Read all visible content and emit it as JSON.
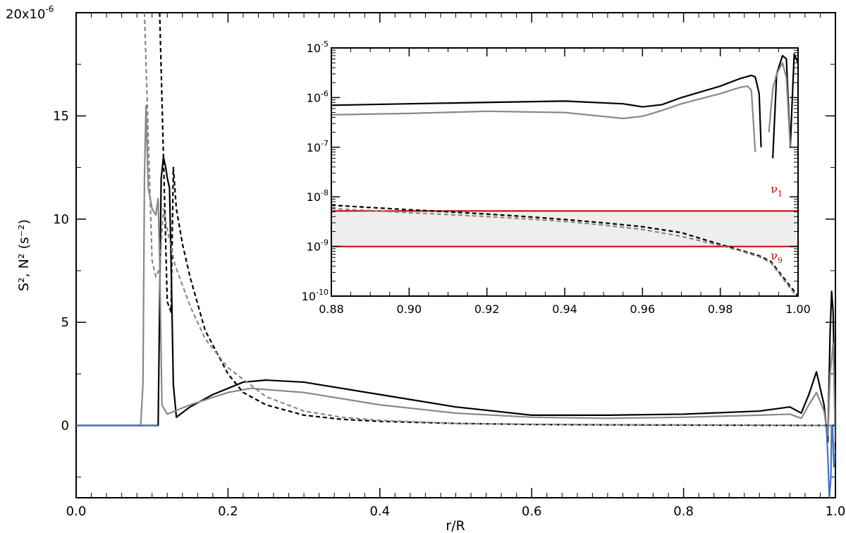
{
  "chart_data": [
    {
      "type": "line",
      "role": "main",
      "xlabel": "r/R",
      "ylabel": "S², N² (s⁻²)",
      "xlim": [
        0.0,
        1.0
      ],
      "ylim": [
        -3.5e-06,
        2e-05
      ],
      "x_ticks": [
        {
          "v": 0.0,
          "label": "0.0"
        },
        {
          "v": 0.2,
          "label": "0.2"
        },
        {
          "v": 0.4,
          "label": "0.4"
        },
        {
          "v": 0.6,
          "label": "0.6"
        },
        {
          "v": 0.8,
          "label": "0.8"
        },
        {
          "v": 1.0,
          "label": "1.0"
        }
      ],
      "y_ticks": [
        {
          "v": 0,
          "label": "0"
        },
        {
          "v": 5e-06,
          "label": "5"
        },
        {
          "v": 1e-05,
          "label": "10"
        },
        {
          "v": 1.5e-05,
          "label": "15"
        }
      ],
      "y_top_label": "20x10",
      "y_top_exponent": "-6",
      "series": [
        {
          "key": "n2_black",
          "color": "#000000",
          "style": "solid",
          "x": [
            0.0,
            0.108,
            0.112,
            0.115,
            0.118,
            0.12,
            0.123,
            0.125,
            0.128,
            0.132,
            0.15,
            0.18,
            0.22,
            0.25,
            0.3,
            0.4,
            0.5,
            0.6,
            0.7,
            0.8,
            0.9,
            0.94,
            0.955,
            0.965,
            0.975,
            0.985,
            0.99,
            0.993,
            0.995,
            0.997,
            1.0
          ],
          "y": [
            0,
            0,
            1.2e-05,
            1.3e-05,
            1.25e-05,
            1.2e-05,
            1.15e-05,
            8e-06,
            2e-06,
            4e-07,
            9e-07,
            1.5e-06,
            2.1e-06,
            2.2e-06,
            2.1e-06,
            1.5e-06,
            9e-07,
            5e-07,
            5e-07,
            5.5e-07,
            7e-07,
            9e-07,
            6e-07,
            1.5e-06,
            2.6e-06,
            1e-06,
            -8e-07,
            4.5e-06,
            6.5e-06,
            5.5e-06,
            -1.2e-06
          ]
        },
        {
          "key": "n2_gray",
          "color": "#888888",
          "style": "solid",
          "x": [
            0.0,
            0.085,
            0.088,
            0.09,
            0.092,
            0.095,
            0.1,
            0.105,
            0.108,
            0.11,
            0.113,
            0.12,
            0.15,
            0.2,
            0.23,
            0.3,
            0.4,
            0.5,
            0.6,
            0.7,
            0.8,
            0.9,
            0.94,
            0.955,
            0.965,
            0.975,
            0.985,
            0.99,
            0.993,
            0.997,
            1.0
          ],
          "y": [
            0,
            0,
            2e-06,
            1.2e-05,
            1.55e-05,
            1.15e-05,
            1.05e-05,
            1.02e-05,
            1.1e-05,
            8e-06,
            1e-06,
            5.5e-07,
            1e-06,
            1.6e-06,
            1.8e-06,
            1.6e-06,
            1e-06,
            6e-07,
            4e-07,
            3.5e-07,
            4e-07,
            5e-07,
            5.5e-07,
            3.5e-07,
            1e-06,
            1.6e-06,
            7e-07,
            -5e-07,
            2.5e-06,
            4e-06,
            -8e-07
          ]
        },
        {
          "key": "s2_black",
          "color": "#000000",
          "style": "dashed",
          "x": [
            0.11,
            0.115,
            0.12,
            0.125,
            0.128,
            0.132,
            0.14,
            0.15,
            0.17,
            0.2,
            0.22,
            0.25,
            0.3,
            0.35,
            0.4,
            0.5,
            0.6,
            0.7,
            0.8,
            0.9,
            1.0
          ],
          "y": [
            2e-05,
            1.3e-05,
            6e-06,
            5.5e-06,
            1.25e-05,
            1.05e-05,
            8.8e-06,
            7.2e-06,
            4.6e-06,
            2.5e-06,
            1.6e-06,
            1e-06,
            5e-07,
            3e-07,
            2e-07,
            1e-07,
            5e-08,
            3e-08,
            2e-08,
            1e-08,
            0.0
          ]
        },
        {
          "key": "s2_gray",
          "color": "#888888",
          "style": "dashed",
          "x": [
            0.09,
            0.095,
            0.1,
            0.105,
            0.11,
            0.115,
            0.12,
            0.13,
            0.15,
            0.17,
            0.2,
            0.25,
            0.3,
            0.35,
            0.4,
            0.5,
            0.6,
            0.7,
            0.8,
            0.9,
            1.0
          ],
          "y": [
            2e-05,
            1.4e-05,
            8e-06,
            7.2e-06,
            7.6e-06,
            1.05e-05,
            9.5e-06,
            7.8e-06,
            5.8e-06,
            4.2e-06,
            2.8e-06,
            1.4e-06,
            7e-07,
            4e-07,
            2.5e-07,
            1e-07,
            6e-08,
            4e-08,
            3e-08,
            2e-08,
            0.0
          ]
        },
        {
          "key": "negative_blue",
          "color": "#4472c4",
          "style": "solid",
          "x": [
            0.0,
            0.108,
            null,
            0.988,
            0.99,
            0.992,
            0.994,
            0.995,
            null,
            0.996,
            0.998,
            1.0
          ],
          "y": [
            0,
            0,
            null,
            0,
            -1.5e-06,
            -3.5e-06,
            -2.5e-06,
            0,
            null,
            0,
            -2e-06,
            -1.2e-06
          ]
        }
      ]
    },
    {
      "type": "line",
      "role": "inset",
      "yscale": "log",
      "xlim": [
        0.88,
        1.0
      ],
      "ylim": [
        1e-10,
        1e-05
      ],
      "x_ticks": [
        {
          "v": 0.88,
          "label": "0.88"
        },
        {
          "v": 0.9,
          "label": "0.90"
        },
        {
          "v": 0.92,
          "label": "0.92"
        },
        {
          "v": 0.94,
          "label": "0.94"
        },
        {
          "v": 0.96,
          "label": "0.96"
        },
        {
          "v": 0.98,
          "label": "0.98"
        },
        {
          "v": 1.0,
          "label": "1.00"
        }
      ],
      "y_ticks": [
        {
          "v": 1e-10,
          "base": "10",
          "exp": "-10"
        },
        {
          "v": 1e-09,
          "base": "10",
          "exp": "-9"
        },
        {
          "v": 1e-08,
          "base": "10",
          "exp": "-8"
        },
        {
          "v": 1e-07,
          "base": "10",
          "exp": "-7"
        },
        {
          "v": 1e-06,
          "base": "10",
          "exp": "-6"
        },
        {
          "v": 1e-05,
          "base": "10",
          "exp": "-5"
        }
      ],
      "band": {
        "low": 1e-09,
        "high": 5.2e-09,
        "fill": "#eeeeee",
        "line_color": "#cc0000"
      },
      "annotations": [
        {
          "sym": "ν",
          "sub": "1",
          "x": 0.9945,
          "y": 1.2e-08
        },
        {
          "sym": "ν",
          "sub": "9",
          "x": 0.9945,
          "y": 5.5e-10
        }
      ],
      "series": [
        {
          "key": "inset_n2_black",
          "color": "#000000",
          "style": "solid",
          "x": [
            0.88,
            0.9,
            0.92,
            0.94,
            0.955,
            0.96,
            0.965,
            0.97,
            0.98,
            0.985,
            0.988,
            0.989,
            0.99,
            0.9905,
            null,
            0.9935,
            0.9945,
            0.996,
            0.997,
            0.998,
            0.999,
            1.0
          ],
          "y": [
            7e-07,
            7.5e-07,
            8e-07,
            8.5e-07,
            7.5e-07,
            6.5e-07,
            7.2e-07,
            1e-06,
            1.7e-06,
            2.4e-06,
            2.8e-06,
            2.6e-06,
            1.2e-06,
            1e-07,
            null,
            6e-08,
            3e-06,
            7e-06,
            6e-06,
            1e-07,
            7.5e-06,
            5e-06
          ]
        },
        {
          "key": "inset_n2_gray",
          "color": "#888888",
          "style": "solid",
          "x": [
            0.88,
            0.9,
            0.92,
            0.94,
            0.955,
            0.96,
            0.965,
            0.97,
            0.98,
            0.985,
            0.987,
            0.988,
            0.989,
            null,
            0.9925,
            0.9935,
            0.9945,
            0.996,
            0.997,
            0.998
          ],
          "y": [
            4.5e-07,
            4.8e-07,
            5.3e-07,
            5e-07,
            3.8e-07,
            4.2e-07,
            5.5e-07,
            7.5e-07,
            1.2e-06,
            1.6e-06,
            1.7e-06,
            1.4e-06,
            8e-08,
            null,
            2e-07,
            1.5e-06,
            3e-06,
            5e-06,
            2.5e-06,
            1e-07
          ]
        },
        {
          "key": "inset_s2_black",
          "color": "#000000",
          "style": "dashed",
          "x": [
            0.88,
            0.89,
            0.9,
            0.91,
            0.92,
            0.93,
            0.94,
            0.95,
            0.96,
            0.97,
            0.98,
            0.985,
            0.99,
            0.993,
            0.996,
            1.0
          ],
          "y": [
            6.8e-09,
            6.1e-09,
            5.5e-09,
            5e-09,
            4.5e-09,
            4e-09,
            3.5e-09,
            3e-09,
            2.5e-09,
            1.9e-09,
            1.1e-09,
            8.5e-10,
            6.5e-10,
            5e-10,
            2.5e-10,
            1e-10
          ]
        },
        {
          "key": "inset_s2_gray",
          "color": "#888888",
          "style": "dashed",
          "x": [
            0.88,
            0.89,
            0.9,
            0.91,
            0.92,
            0.93,
            0.94,
            0.95,
            0.96,
            0.97,
            0.98,
            0.985,
            0.99,
            0.993,
            0.996,
            1.0
          ],
          "y": [
            5.8e-09,
            5.3e-09,
            4.8e-09,
            4.4e-09,
            4e-09,
            3.6e-09,
            3.2e-09,
            2.7e-09,
            2.2e-09,
            1.6e-09,
            1.05e-09,
            8.2e-10,
            6.2e-10,
            4.7e-10,
            2.3e-10,
            9e-11
          ]
        }
      ]
    }
  ]
}
